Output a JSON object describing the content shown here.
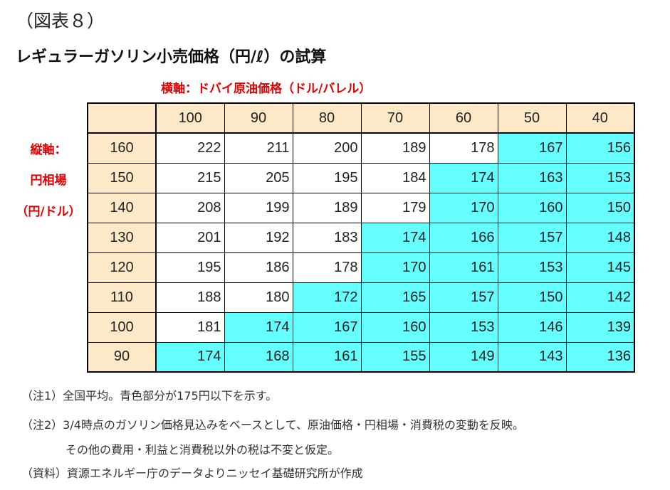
{
  "figure_label": "（図表８）",
  "title": "レギュラーガソリン小売価格（円/ℓ）の試算",
  "horizontal_axis_label": "横軸：ドバイ原油価格（ドル/バレル）",
  "vertical_axis_label": [
    "縦軸：",
    "円相場",
    "（円/ドル）"
  ],
  "highlight_color": "#66ffff",
  "header_color": "#fde9c7",
  "highlight_threshold": 175,
  "chart_data": {
    "type": "table",
    "columns": [
      "100",
      "90",
      "80",
      "70",
      "60",
      "50",
      "40"
    ],
    "rows": [
      {
        "label": "160",
        "values": [
          222,
          211,
          200,
          189,
          178,
          167,
          156
        ]
      },
      {
        "label": "150",
        "values": [
          215,
          205,
          195,
          184,
          174,
          163,
          153
        ]
      },
      {
        "label": "140",
        "values": [
          208,
          199,
          189,
          179,
          170,
          160,
          150
        ]
      },
      {
        "label": "130",
        "values": [
          201,
          192,
          183,
          174,
          166,
          157,
          148
        ]
      },
      {
        "label": "120",
        "values": [
          195,
          186,
          178,
          170,
          161,
          153,
          145
        ]
      },
      {
        "label": "110",
        "values": [
          188,
          180,
          172,
          165,
          157,
          150,
          142
        ]
      },
      {
        "label": "100",
        "values": [
          181,
          174,
          167,
          160,
          153,
          146,
          139
        ]
      },
      {
        "label": "90",
        "values": [
          174,
          168,
          161,
          155,
          149,
          143,
          136
        ]
      }
    ]
  },
  "notes": [
    "（注1）全国平均。青色部分が175円以下を示す。",
    "（注2）3/4時点のガソリン価格見込みをベースとして、原油価格・円相場・消費税の変動を反映。",
    "その他の費用・利益と消費税以外の税は不変と仮定。",
    "（資料）資源エネルギー庁のデータよりニッセイ基礎研究所が作成"
  ]
}
